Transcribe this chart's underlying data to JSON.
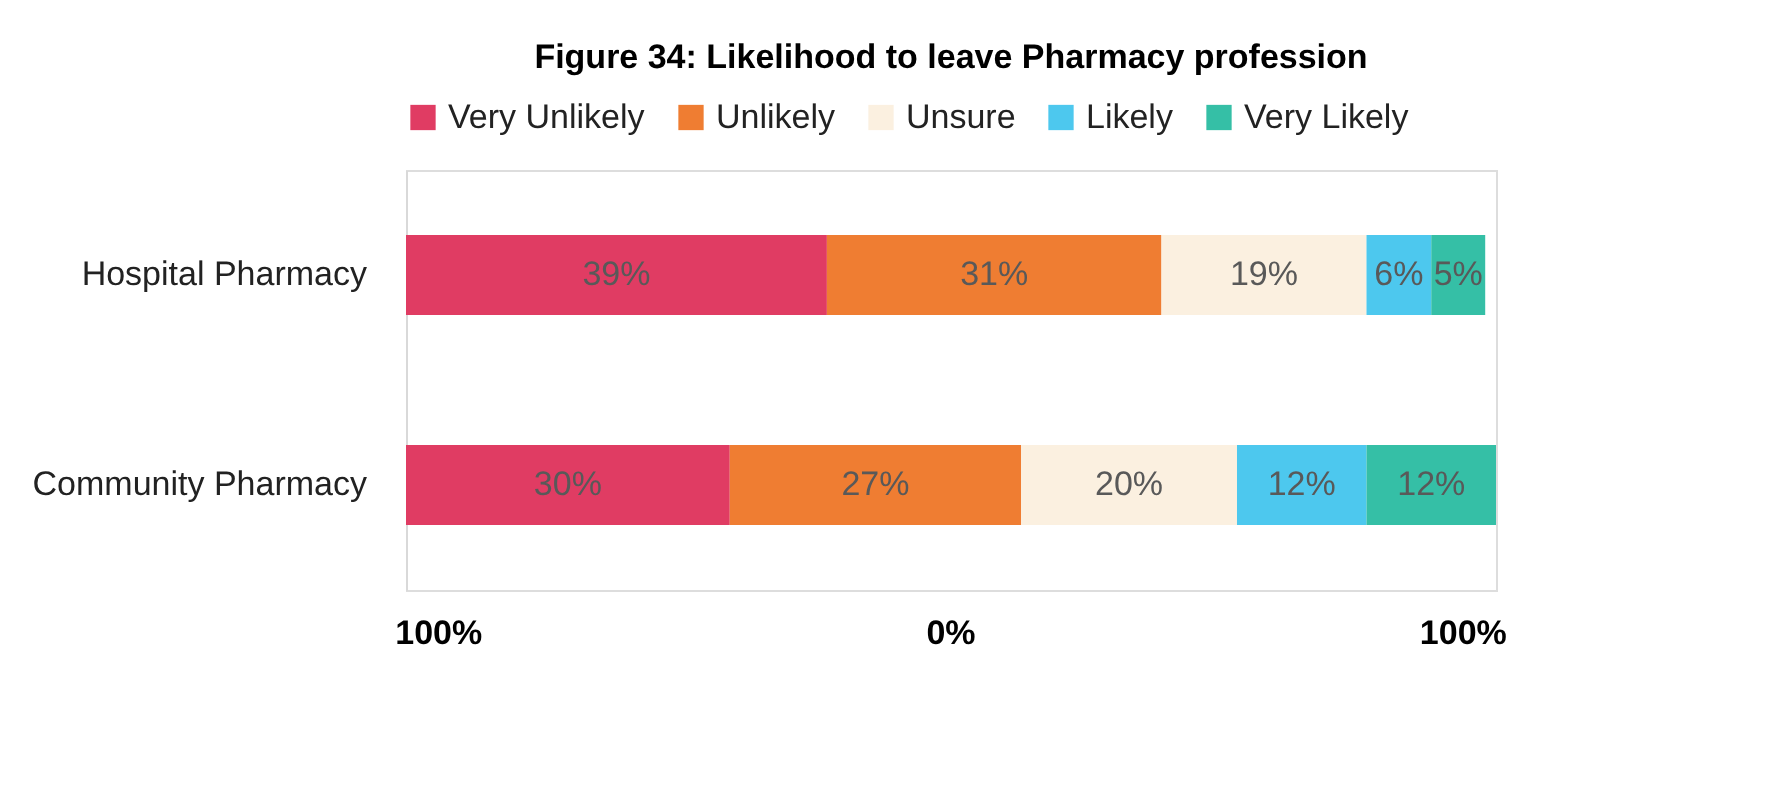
{
  "chart_data": {
    "type": "bar",
    "orientation": "horizontal",
    "stacked": true,
    "title": "Figure 34: Likelihood to leave Pharmacy profession",
    "categories": [
      "Hospital Pharmacy",
      "Community Pharmacy"
    ],
    "series": [
      {
        "name": "Very Unlikely",
        "color": "#e03c63",
        "values": [
          39,
          30
        ],
        "value_labels": [
          "39%",
          "30%"
        ]
      },
      {
        "name": "Unlikely",
        "color": "#ef7d32",
        "values": [
          31,
          27
        ],
        "value_labels": [
          "31%",
          "27%"
        ]
      },
      {
        "name": "Unsure",
        "color": "#fbf0e0",
        "values": [
          19,
          20
        ],
        "value_labels": [
          "19%",
          "20%"
        ]
      },
      {
        "name": "Likely",
        "color": "#4dc8ee",
        "values": [
          6,
          12
        ],
        "value_labels": [
          "6%",
          "12%"
        ]
      },
      {
        "name": "Very Likely",
        "color": "#35bfa6",
        "values": [
          5,
          12
        ],
        "value_labels": [
          "5%",
          "12%"
        ]
      }
    ],
    "annotations": [
      "100%",
      "0%",
      "100%"
    ],
    "legend": "top",
    "grid": false
  }
}
